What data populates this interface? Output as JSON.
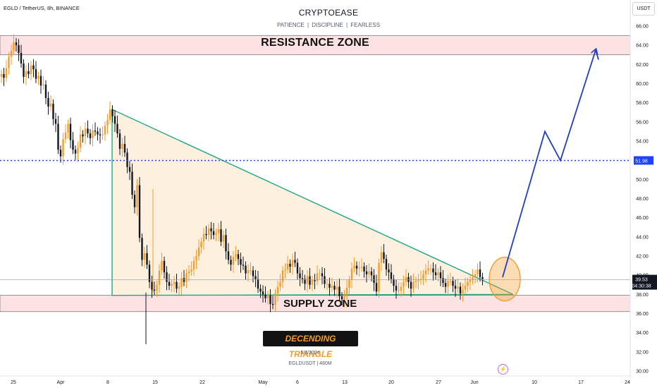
{
  "header": {
    "symbol": "EGLD / TetherUS, 8h, BINANCE",
    "title": "CRYPTOEASE",
    "subtitle": "PATIENCE | DISCIPLINE | FEARLESS",
    "currency": "USDT"
  },
  "zones": {
    "resistance": {
      "label": "RESISTANCE ZONE",
      "low": 63.0,
      "high": 65.0
    },
    "supply": {
      "label": "SUPPLY ZONE",
      "low": 36.2,
      "high": 37.9
    }
  },
  "pattern_label": "DECENDING TRIANGLE",
  "footer": {
    "date": "5/6/2024",
    "meta": "EGLDUSDT | 480M"
  },
  "price_labels": {
    "level": "51.98",
    "current": "39.53",
    "countdown": "04:30:38"
  },
  "colors": {
    "up": "#f39c2c",
    "down": "#131722",
    "triangle": "#1ea882",
    "triangle_fill": "#fdf0de",
    "zone_fill": "#fde2e4",
    "projection": "#1e3fbf",
    "level_line": "#1e40ff",
    "circle": "#f39c2c"
  },
  "chart_data": {
    "type": "candlestick",
    "title": "CRYPTOEASE",
    "ylim": [
      30,
      67
    ],
    "yticks": [
      "30.00",
      "32.00",
      "34.00",
      "36.00",
      "38.00",
      "40.00",
      "42.00",
      "44.00",
      "46.00",
      "48.00",
      "50.00",
      "52.00",
      "54.00",
      "56.00",
      "58.00",
      "60.00",
      "62.00",
      "64.00",
      "66.00"
    ],
    "xticks": [
      "25",
      "Apr",
      "8",
      "15",
      "22",
      "May",
      "6",
      "13",
      "20",
      "27",
      "Jun",
      "10",
      "17",
      "24"
    ],
    "level": 51.98,
    "current_price": 39.53,
    "triangle": {
      "top": 57.3,
      "base": 37.9,
      "apex": 38.0
    },
    "projection": [
      39.8,
      55.0,
      51.98,
      63.5,
      62.5
    ],
    "closes": [
      61.0,
      60.6,
      61.6,
      62.8,
      63.4,
      64.3,
      64.0,
      63.2,
      62.1,
      60.7,
      61.3,
      61.0,
      61.9,
      61.5,
      60.5,
      60.8,
      59.8,
      59.9,
      58.5,
      57.6,
      57.9,
      56.3,
      55.8,
      53.1,
      52.4,
      54.2,
      54.9,
      55.8,
      54.1,
      53.1,
      52.7,
      53.3,
      54.7,
      54.5,
      55.3,
      54.8,
      54.3,
      55.1,
      55.0,
      54.7,
      54.6,
      54.7,
      55.6,
      56.2,
      57.3,
      56.6,
      55.8,
      54.8,
      53.2,
      53.7,
      52.8,
      51.3,
      50.8,
      48.4,
      47.1,
      49.4,
      43.9,
      41.6,
      42.3,
      41.1,
      39.3,
      38.5,
      38.4,
      39.0,
      40.5,
      41.5,
      40.3,
      39.3,
      38.9,
      39.1,
      39.3,
      38.6,
      38.8,
      39.7,
      39.3,
      40.2,
      40.4,
      40.6,
      41.5,
      42.0,
      42.9,
      43.5,
      44.3,
      44.2,
      44.9,
      44.6,
      44.2,
      44.4,
      44.8,
      43.5,
      44.2,
      42.5,
      41.6,
      41.1,
      41.9,
      42.2,
      41.7,
      41.1,
      41.0,
      40.2,
      40.5,
      40.5,
      39.9,
      39.6,
      38.6,
      38.3,
      38.0,
      37.6,
      37.9,
      37.0,
      36.9,
      38.1,
      38.8,
      39.3,
      40.5,
      40.6,
      41.2,
      40.9,
      41.6,
      41.3,
      40.2,
      39.7,
      39.6,
      39.1,
      39.9,
      39.0,
      39.5,
      39.4,
      40.2,
      40.2,
      39.9,
      39.1,
      39.1,
      38.7,
      38.9,
      38.5,
      38.8,
      37.8,
      37.5,
      37.8,
      38.7,
      39.5,
      40.7,
      41.0,
      40.7,
      40.8,
      40.9,
      40.4,
      40.1,
      40.4,
      40.0,
      39.2,
      38.3,
      41.3,
      42.4,
      41.7,
      40.6,
      40.3,
      39.6,
      38.9,
      38.4,
      38.4,
      38.8,
      39.3,
      39.8,
      39.3,
      38.6,
      39.3,
      39.4,
      39.5,
      39.6,
      40.1,
      40.5,
      40.7,
      40.7,
      40.3,
      40.0,
      40.3,
      39.7,
      39.2,
      38.8,
      39.4,
      39.4,
      38.9,
      38.6,
      38.8,
      38.1,
      38.5,
      38.9,
      39.3,
      39.5,
      39.8,
      40.1,
      40.6,
      39.8,
      39.6
    ]
  }
}
